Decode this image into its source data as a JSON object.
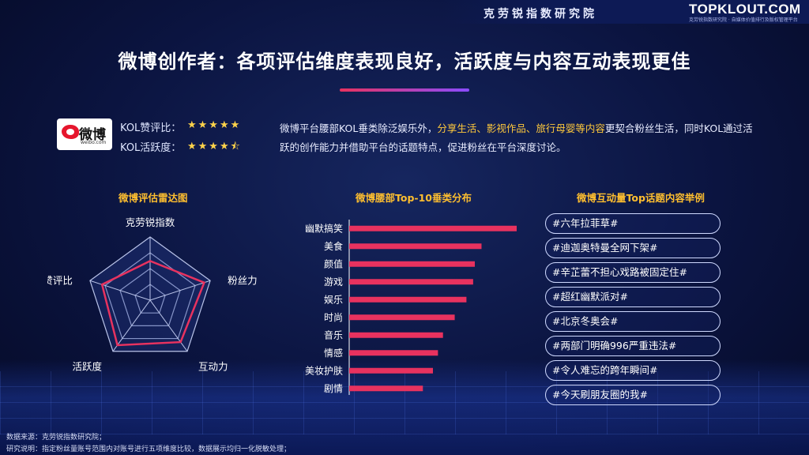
{
  "header": {
    "institute": "克劳锐指数研究院",
    "brand": "TOPKLOUT.COM",
    "brand_sub": "克劳锐指数研究院 · 自媒体价值排行及版权管理平台"
  },
  "page_title": "微博创作者：各项评估维度表现良好，活跃度与内容互动表现更佳",
  "platform": {
    "logo_cn": "微博",
    "logo_en": "weibo.com"
  },
  "ratings": [
    {
      "label": "KOL赞评比：",
      "stars": "★★★★★"
    },
    {
      "label": "KOL活跃度：",
      "stars": "★★★★⯪"
    }
  ],
  "description": {
    "part1": "微博平台腰部KOL垂类除泛娱乐外，",
    "highlight": "分享生活、影视作品、旅行母婴等内容",
    "part2": "更契合粉丝生活，同时KOL通过活跃的创作能力并借助平台的话题特点，促进粉丝在平台深度讨论。"
  },
  "sections": {
    "radar_title": "微博评估雷达图",
    "bar_title": "微博腰部Top-10垂类分布",
    "topics_title": "微博互动量Top话题内容举例"
  },
  "chart_data": [
    {
      "type": "radar",
      "title": "微博评估雷达图",
      "axes": [
        "克劳锐指数",
        "粉丝力",
        "互动力",
        "活跃度",
        "赞评比"
      ],
      "values": [
        0.62,
        0.9,
        0.82,
        0.88,
        0.8
      ],
      "range": [
        0,
        1
      ],
      "rings": 4,
      "color": "#e8325f"
    },
    {
      "type": "bar",
      "orientation": "horizontal",
      "title": "微博腰部Top-10垂类分布",
      "categories": [
        "幽默搞笑",
        "美食",
        "颜值",
        "游戏",
        "娱乐",
        "时尚",
        "音乐",
        "情感",
        "美妆护肤",
        "剧情"
      ],
      "values": [
        100,
        79,
        75,
        74,
        70,
        63,
        56,
        53,
        50,
        44
      ],
      "color": "#e8325f"
    }
  ],
  "topics": [
    "#六年拉菲草#",
    "#迪迦奥特曼全网下架#",
    "#辛芷蕾不担心戏路被固定住#",
    "#超红幽默派对#",
    "#北京冬奥会#",
    "#两部门明确996严重违法#",
    "#令人难忘的跨年瞬间#",
    "#今天刷朋友圈的我#"
  ],
  "footer": {
    "source": "数据来源：克劳锐指数研究院；",
    "note": "研究说明：指定粉丝量账号范围内对账号进行五项维度比较，数据展示均归一化脱敏处理；"
  }
}
